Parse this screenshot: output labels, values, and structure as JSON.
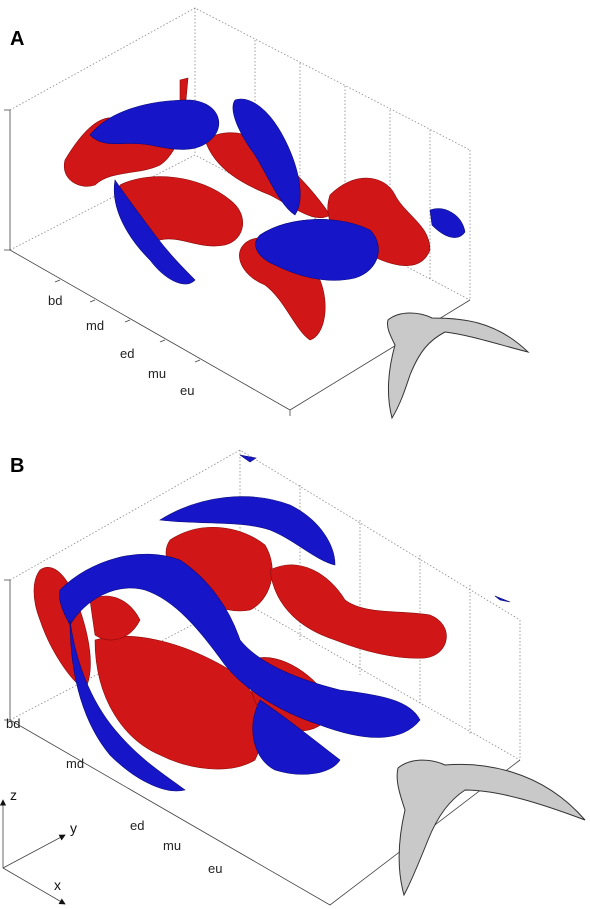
{
  "panels": [
    {
      "label": "A",
      "phase_labels": [
        "bd",
        "md",
        "ed",
        "mu",
        "eu"
      ]
    },
    {
      "label": "B",
      "phase_labels": [
        "bd",
        "md",
        "ed",
        "mu",
        "eu"
      ]
    }
  ],
  "axes_key": {
    "z": "z",
    "y": "y",
    "x": "x"
  }
}
